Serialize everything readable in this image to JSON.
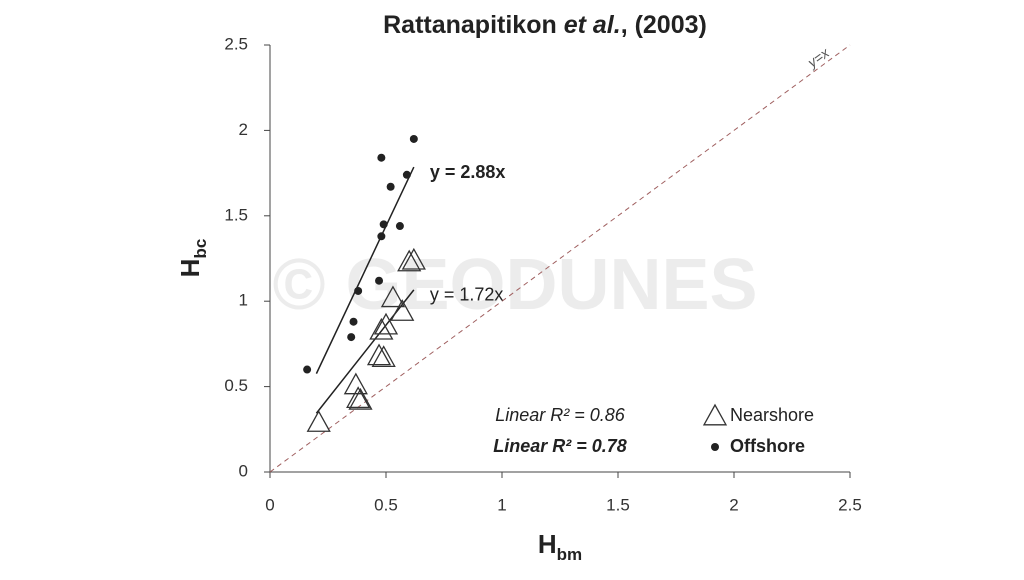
{
  "chart_data": {
    "type": "scatter",
    "title": [
      "Rattanapitikon ",
      "et al.",
      ", (2003)"
    ],
    "x_label": [
      "H",
      "bm"
    ],
    "y_label": [
      "H",
      "bc"
    ],
    "xlim": [
      0,
      2.5
    ],
    "ylim": [
      0,
      2.5
    ],
    "xticks": [
      0,
      0.5,
      1,
      1.5,
      2,
      2.5
    ],
    "yticks": [
      0,
      0.5,
      1,
      1.5,
      2,
      2.5
    ],
    "grid": false,
    "series": [
      {
        "name": "Nearshore",
        "marker": "triangle",
        "color": "#333333",
        "x": [
          0.21,
          0.37,
          0.38,
          0.39,
          0.47,
          0.49,
          0.48,
          0.5,
          0.53,
          0.57,
          0.6,
          0.62
        ],
        "values": [
          0.29,
          0.51,
          0.43,
          0.42,
          0.68,
          0.67,
          0.83,
          0.86,
          1.02,
          0.94,
          1.23,
          1.24
        ]
      },
      {
        "name": "Offshore",
        "marker": "circle",
        "color": "#222222",
        "x": [
          0.16,
          0.35,
          0.36,
          0.38,
          0.47,
          0.48,
          0.48,
          0.49,
          0.52,
          0.56,
          0.59,
          0.62
        ],
        "values": [
          0.6,
          0.79,
          0.88,
          1.06,
          1.12,
          1.84,
          1.38,
          1.45,
          1.67,
          1.44,
          1.74,
          1.95
        ]
      }
    ],
    "fits": [
      {
        "label": "y = 1.72x",
        "slope": 1.72,
        "x_range": [
          0.2,
          0.62
        ],
        "bold": false,
        "r2_label": "Linear R² = 0.86"
      },
      {
        "label": "y = 2.88x",
        "slope": 2.88,
        "x_range": [
          0.2,
          0.62
        ],
        "bold": true,
        "r2_label": "Linear R² = 0.78"
      }
    ],
    "reference_line": {
      "label": "y=x",
      "slope": 1
    },
    "watermark": "© GEODUNES",
    "legend": "lower right"
  }
}
